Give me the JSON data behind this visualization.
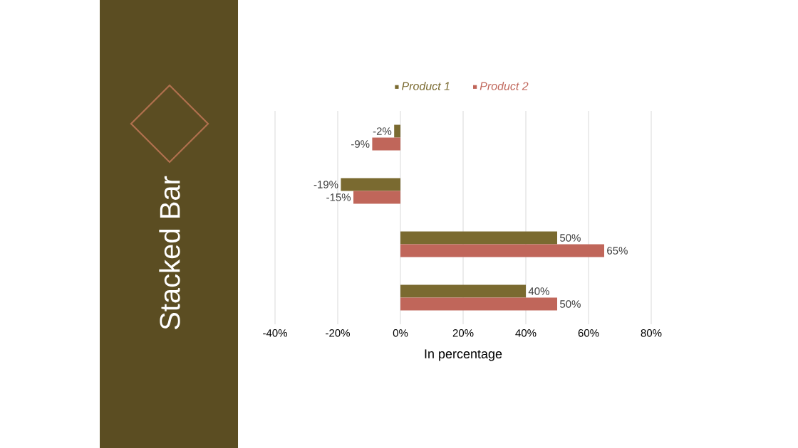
{
  "chart_data": {
    "type": "bar",
    "orientation": "horizontal",
    "title": "Stacked Bar",
    "xlabel": "In percentage",
    "categories": [
      null,
      null,
      null,
      null
    ],
    "series": [
      {
        "name": "Product 1",
        "color": "#7a6a30",
        "values": [
          -2,
          -19,
          50,
          40
        ],
        "value_labels": [
          "-2%",
          "-19%",
          "50%",
          "40%"
        ]
      },
      {
        "name": "Product 2",
        "color": "#c0665a",
        "values": [
          -9,
          -15,
          65,
          50
        ],
        "value_labels": [
          "-9%",
          "-15%",
          "65%",
          "50%"
        ]
      }
    ],
    "xlim": [
      -40,
      80
    ],
    "xticks": [
      {
        "value": -40,
        "label": "-40%"
      },
      {
        "value": -20,
        "label": "-20%"
      },
      {
        "value": 0,
        "label": "0%"
      },
      {
        "value": 20,
        "label": "20%"
      },
      {
        "value": 40,
        "label": "40%"
      },
      {
        "value": 60,
        "label": "60%"
      },
      {
        "value": 80,
        "label": "80%"
      }
    ],
    "grid": "x",
    "legend": "top"
  }
}
